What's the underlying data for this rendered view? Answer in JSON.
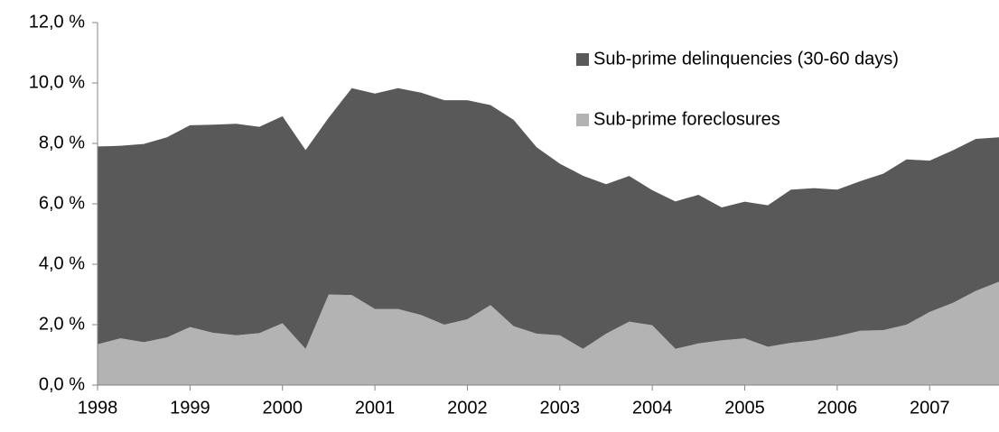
{
  "chart_data": {
    "type": "stacked_area",
    "x": [
      1998,
      1998.25,
      1998.5,
      1998.75,
      1999,
      1999.25,
      1999.5,
      1999.75,
      2000,
      2000.25,
      2000.5,
      2000.75,
      2001,
      2001.25,
      2001.5,
      2001.75,
      2002,
      2002.25,
      2002.5,
      2002.75,
      2003,
      2003.25,
      2003.5,
      2003.75,
      2004,
      2004.25,
      2004.5,
      2004.75,
      2005,
      2005.25,
      2005.5,
      2005.75,
      2006,
      2006.25,
      2006.5,
      2006.75,
      2007,
      2007.25,
      2007.5,
      2007.75
    ],
    "series": [
      {
        "name": "Sub-prime foreclosures",
        "color": "#b3b3b3",
        "values": [
          1.35,
          1.55,
          1.42,
          1.58,
          1.92,
          1.73,
          1.65,
          1.72,
          2.05,
          1.2,
          3.0,
          2.98,
          2.52,
          2.52,
          2.32,
          2.0,
          2.18,
          2.65,
          1.95,
          1.7,
          1.65,
          1.2,
          1.7,
          2.1,
          1.98,
          1.2,
          1.38,
          1.48,
          1.55,
          1.27,
          1.4,
          1.48,
          1.62,
          1.8,
          1.82,
          2.0,
          2.42,
          2.72,
          3.12,
          3.42
        ]
      },
      {
        "name": "Sub-prime delinquencies (30-60 days)",
        "color": "#595959",
        "values": [
          6.55,
          6.37,
          6.56,
          6.62,
          6.68,
          6.89,
          7.0,
          6.83,
          6.85,
          6.58,
          5.85,
          6.85,
          7.13,
          7.31,
          7.36,
          7.43,
          7.25,
          6.62,
          6.83,
          6.17,
          5.68,
          5.73,
          4.95,
          4.82,
          4.47,
          4.88,
          4.92,
          4.4,
          4.52,
          4.68,
          5.07,
          5.04,
          4.85,
          4.95,
          5.18,
          5.47,
          5.01,
          5.05,
          5.03,
          4.78
        ]
      }
    ],
    "xlim": [
      1998,
      2007.75
    ],
    "xticks": [
      1998,
      1999,
      2000,
      2001,
      2002,
      2003,
      2004,
      2005,
      2006,
      2007
    ],
    "ylim": [
      0,
      12
    ],
    "yticks": [
      {
        "value": 0,
        "label": "0,0 %"
      },
      {
        "value": 2,
        "label": "2,0 %"
      },
      {
        "value": 4,
        "label": "4,0 %"
      },
      {
        "value": 6,
        "label": "6,0 %"
      },
      {
        "value": 8,
        "label": "8,0 %"
      },
      {
        "value": 10,
        "label": "10,0 %"
      },
      {
        "value": 12,
        "label": "12,0 %"
      }
    ],
    "legend": "top-right"
  }
}
